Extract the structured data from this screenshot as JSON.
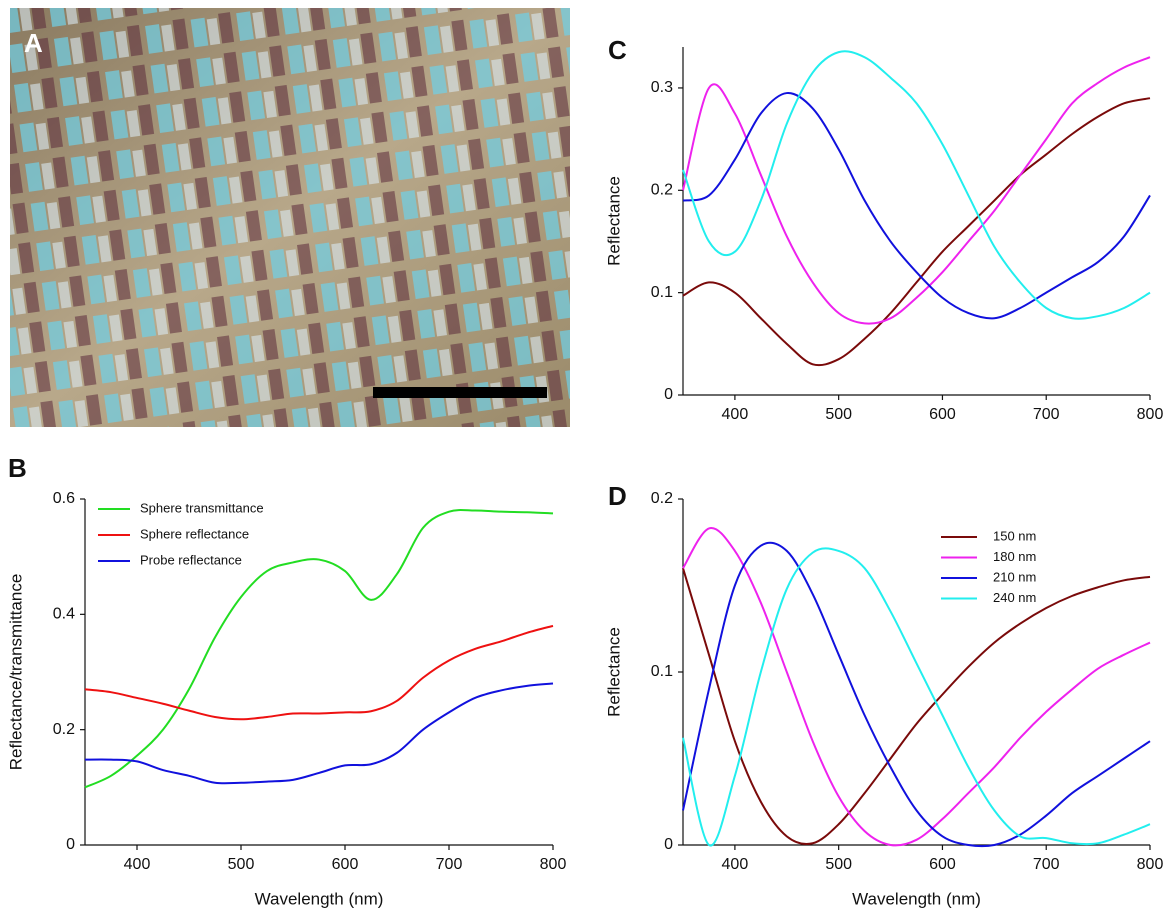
{
  "panel_a": {
    "label": "A"
  },
  "chart_data": [
    {
      "type": "line",
      "panel_label": "B",
      "ylabel": "Reflectance/transmittance",
      "xlabel": "Wavelength (nm)",
      "x": [
        350,
        375,
        400,
        425,
        450,
        475,
        500,
        525,
        550,
        575,
        600,
        625,
        650,
        675,
        700,
        725,
        750,
        775,
        800
      ],
      "xlim": [
        350,
        800
      ],
      "xticks": [
        400,
        500,
        600,
        700,
        800
      ],
      "ylim": [
        0,
        0.6
      ],
      "yticks": [
        0,
        0.2,
        0.4,
        0.6
      ],
      "legend": "upper left",
      "series": [
        {
          "name": "Sphere transmittance",
          "color": "#22dd22",
          "values": [
            0.1,
            0.12,
            0.155,
            0.2,
            0.27,
            0.36,
            0.43,
            0.475,
            0.49,
            0.495,
            0.475,
            0.425,
            0.47,
            0.55,
            0.578,
            0.58,
            0.578,
            0.577,
            0.575
          ]
        },
        {
          "name": "Sphere reflectance",
          "color": "#ee1111",
          "values": [
            0.27,
            0.265,
            0.255,
            0.245,
            0.233,
            0.222,
            0.218,
            0.222,
            0.228,
            0.228,
            0.23,
            0.232,
            0.25,
            0.29,
            0.32,
            0.34,
            0.353,
            0.368,
            0.38
          ]
        },
        {
          "name": "Probe reflectance",
          "color": "#1111dd",
          "values": [
            0.148,
            0.148,
            0.145,
            0.13,
            0.12,
            0.108,
            0.108,
            0.11,
            0.113,
            0.125,
            0.138,
            0.14,
            0.16,
            0.2,
            0.23,
            0.255,
            0.268,
            0.276,
            0.28
          ]
        }
      ]
    },
    {
      "type": "line",
      "panel_label": "C",
      "ylabel": "Reflectance",
      "x": [
        350,
        375,
        400,
        425,
        450,
        475,
        500,
        525,
        550,
        575,
        600,
        625,
        650,
        675,
        700,
        725,
        750,
        775,
        800
      ],
      "xlim": [
        350,
        800
      ],
      "xticks": [
        400,
        500,
        600,
        700,
        800
      ],
      "ylim": [
        0,
        0.34
      ],
      "yticks": [
        0,
        0.1,
        0.2,
        0.3
      ],
      "series": [
        {
          "color": "#7a0a0a",
          "values": [
            0.097,
            0.11,
            0.1,
            0.075,
            0.05,
            0.03,
            0.035,
            0.055,
            0.08,
            0.11,
            0.14,
            0.165,
            0.19,
            0.215,
            0.235,
            0.255,
            0.272,
            0.285,
            0.29
          ]
        },
        {
          "color": "#ee22ee",
          "values": [
            0.2,
            0.3,
            0.275,
            0.215,
            0.155,
            0.11,
            0.08,
            0.07,
            0.075,
            0.095,
            0.12,
            0.15,
            0.18,
            0.215,
            0.25,
            0.285,
            0.305,
            0.32,
            0.33
          ]
        },
        {
          "color": "#1111dd",
          "values": [
            0.19,
            0.195,
            0.23,
            0.275,
            0.295,
            0.28,
            0.24,
            0.19,
            0.15,
            0.12,
            0.095,
            0.08,
            0.075,
            0.085,
            0.1,
            0.115,
            0.13,
            0.155,
            0.195
          ]
        },
        {
          "color": "#22eeee",
          "values": [
            0.22,
            0.15,
            0.14,
            0.19,
            0.265,
            0.315,
            0.335,
            0.33,
            0.31,
            0.285,
            0.245,
            0.195,
            0.145,
            0.11,
            0.085,
            0.075,
            0.077,
            0.085,
            0.1
          ]
        }
      ]
    },
    {
      "type": "line",
      "panel_label": "D",
      "ylabel": "Reflectance",
      "xlabel": "Wavelength (nm)",
      "x": [
        350,
        375,
        400,
        425,
        450,
        475,
        500,
        525,
        550,
        575,
        600,
        625,
        650,
        675,
        700,
        725,
        750,
        775,
        800
      ],
      "xlim": [
        350,
        800
      ],
      "xticks": [
        400,
        500,
        600,
        700,
        800
      ],
      "ylim": [
        0,
        0.2
      ],
      "yticks": [
        0,
        0.1,
        0.2
      ],
      "legend": "upper right",
      "series": [
        {
          "name": "150 nm",
          "color": "#7a0a0a",
          "values": [
            0.16,
            0.11,
            0.06,
            0.025,
            0.005,
            0.001,
            0.012,
            0.03,
            0.05,
            0.07,
            0.087,
            0.103,
            0.117,
            0.128,
            0.137,
            0.144,
            0.149,
            0.153,
            0.155
          ]
        },
        {
          "name": "180 nm",
          "color": "#ee22ee",
          "values": [
            0.16,
            0.183,
            0.17,
            0.14,
            0.1,
            0.06,
            0.028,
            0.008,
            0.0,
            0.003,
            0.015,
            0.03,
            0.045,
            0.062,
            0.077,
            0.09,
            0.102,
            0.11,
            0.117
          ]
        },
        {
          "name": "210 nm",
          "color": "#1111dd",
          "values": [
            0.02,
            0.09,
            0.15,
            0.173,
            0.17,
            0.145,
            0.11,
            0.075,
            0.045,
            0.02,
            0.005,
            0.0,
            0.0,
            0.006,
            0.017,
            0.03,
            0.04,
            0.05,
            0.06
          ]
        },
        {
          "name": "240 nm",
          "color": "#22eeee",
          "values": [
            0.062,
            0.0,
            0.04,
            0.1,
            0.148,
            0.169,
            0.17,
            0.16,
            0.135,
            0.105,
            0.075,
            0.045,
            0.02,
            0.005,
            0.004,
            0.001,
            0.001,
            0.006,
            0.012
          ]
        }
      ]
    }
  ]
}
